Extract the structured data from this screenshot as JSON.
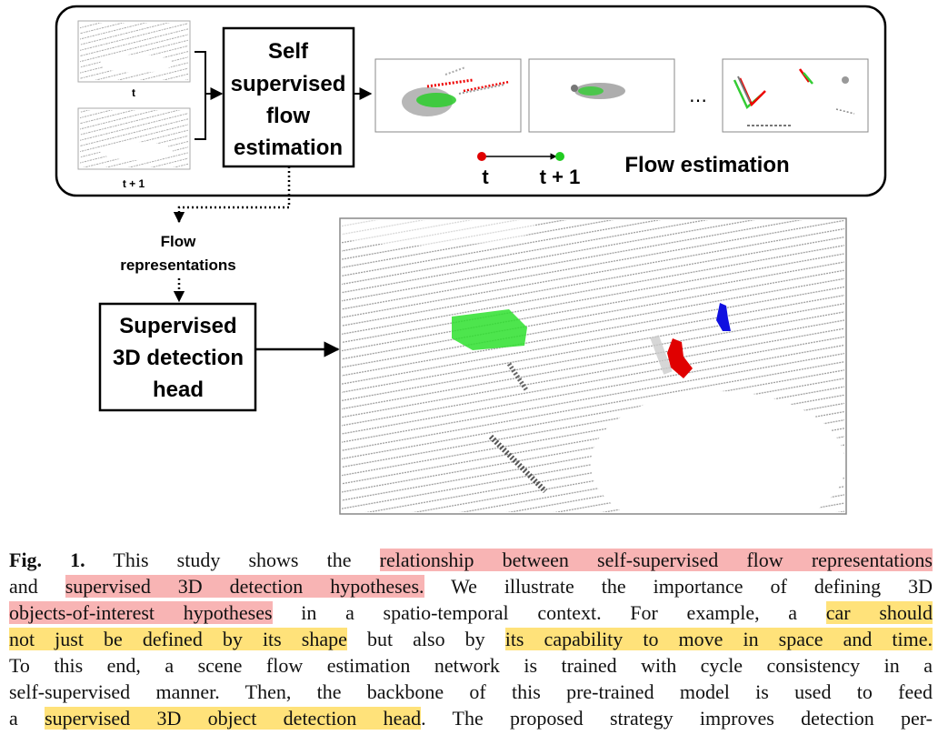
{
  "figure": {
    "frame_label_t": "t",
    "frame_label_t1": "t + 1",
    "flow_box_lines": [
      "Self",
      "supervised",
      "flow",
      "estimation"
    ],
    "legend_t": "t",
    "legend_t1": "t + 1",
    "ellipsis": "…",
    "flow_estimation_title": "Flow estimation",
    "flow_repr_lines": [
      "Flow",
      "representations"
    ],
    "det_box_lines": [
      "Supervised",
      "3D detection",
      "head"
    ],
    "colors": {
      "t_point": "#e00000",
      "t1_point": "#22cc22",
      "car": "#2ee02e",
      "cyclist": "#e00000",
      "pedestrian": "#1010e0",
      "lidar": "#8a8a8a"
    }
  },
  "caption": {
    "figlabel": "Fig. 1.",
    "lines": [
      [
        {
          "t": " This study shows the ",
          "h": ""
        },
        {
          "t": "relationship between self-supervised flow representations",
          "h": "red"
        }
      ],
      [
        {
          "t": "and ",
          "h": ""
        },
        {
          "t": "supervised 3D detection hypotheses.",
          "h": "red"
        },
        {
          "t": " We illustrate the importance of defining 3D",
          "h": ""
        }
      ],
      [
        {
          "t": "objects-of-interest hypotheses",
          "h": "red"
        },
        {
          "t": " in a spatio-temporal context. For example, a ",
          "h": ""
        },
        {
          "t": "car should",
          "h": "yel"
        }
      ],
      [
        {
          "t": "not just be defined by its shape",
          "h": "yel"
        },
        {
          "t": " but also by ",
          "h": ""
        },
        {
          "t": "its capability to move in space and time.",
          "h": "yel"
        }
      ],
      [
        {
          "t": "To this end, a scene flow estimation network is trained with cycle consistency in a",
          "h": ""
        }
      ],
      [
        {
          "t": "self-supervised manner. Then, the backbone of this pre-trained model is used to feed",
          "h": ""
        }
      ],
      [
        {
          "t": "a ",
          "h": ""
        },
        {
          "t": "supervised 3D object detection head",
          "h": "yel"
        },
        {
          "t": ". The proposed strategy improves detection per-",
          "h": ""
        }
      ]
    ]
  }
}
